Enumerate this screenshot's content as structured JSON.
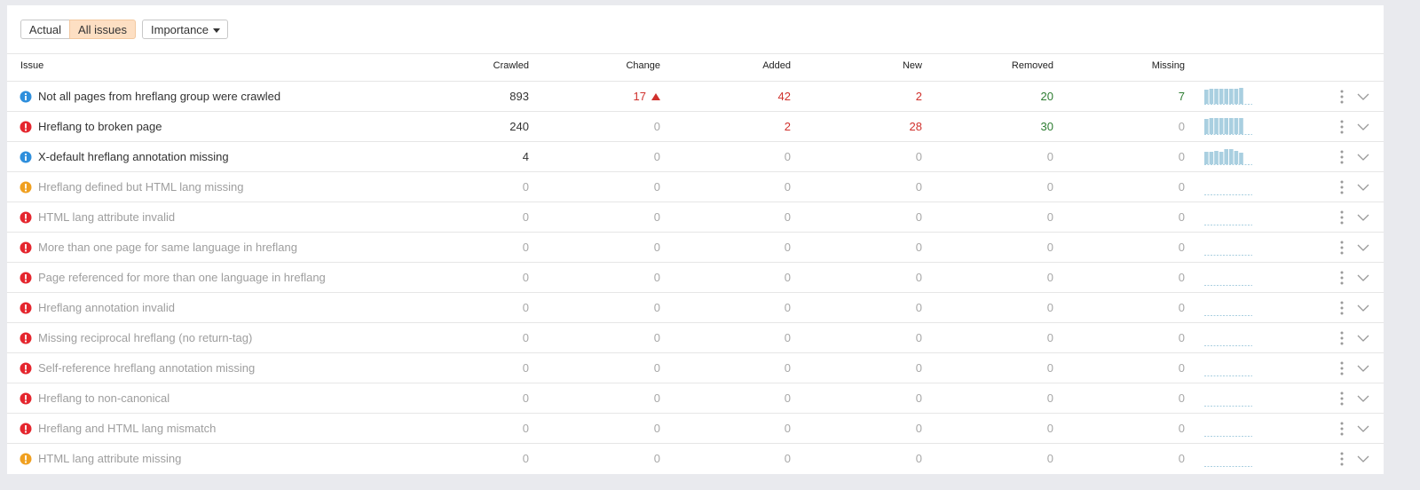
{
  "toolbar": {
    "tabs": [
      "Actual",
      "All issues"
    ],
    "active_tab": 1,
    "dropdown": "Importance"
  },
  "table": {
    "columns": [
      "Issue",
      "Crawled",
      "Change",
      "Added",
      "New",
      "Removed",
      "Missing"
    ],
    "rows": [
      {
        "level": "info",
        "issue": "Not all pages from hreflang group were crawled",
        "crawled": 893,
        "change": 17,
        "added": 42,
        "new": 2,
        "removed": 20,
        "missing": 7,
        "trend": [
          16,
          17,
          17,
          17,
          17,
          17,
          17,
          18
        ]
      },
      {
        "level": "error",
        "issue": "Hreflang to broken page",
        "crawled": 240,
        "change": 0,
        "added": 2,
        "new": 28,
        "removed": 30,
        "missing": 0,
        "trend": [
          17,
          18,
          18,
          18,
          18,
          18,
          18,
          18
        ]
      },
      {
        "level": "info",
        "issue": "X-default hreflang annotation missing",
        "crawled": 4,
        "change": 0,
        "added": 0,
        "new": 0,
        "removed": 0,
        "missing": 0,
        "trend": [
          14,
          14,
          15,
          14,
          17,
          17,
          15,
          13
        ]
      },
      {
        "level": "warning",
        "issue": "Hreflang defined but HTML lang missing",
        "crawled": 0,
        "change": 0,
        "added": 0,
        "new": 0,
        "removed": 0,
        "missing": 0,
        "trend": [
          0,
          0,
          0,
          0,
          0,
          0,
          0,
          0
        ]
      },
      {
        "level": "error",
        "issue": "HTML lang attribute invalid",
        "crawled": 0,
        "change": 0,
        "added": 0,
        "new": 0,
        "removed": 0,
        "missing": 0,
        "trend": [
          0,
          0,
          0,
          0,
          0,
          0,
          0,
          0
        ]
      },
      {
        "level": "error",
        "issue": "More than one page for same language in hreflang",
        "crawled": 0,
        "change": 0,
        "added": 0,
        "new": 0,
        "removed": 0,
        "missing": 0,
        "trend": [
          0,
          0,
          0,
          0,
          0,
          0,
          0,
          0
        ]
      },
      {
        "level": "error",
        "issue": "Page referenced for more than one language in hreflang",
        "crawled": 0,
        "change": 0,
        "added": 0,
        "new": 0,
        "removed": 0,
        "missing": 0,
        "trend": [
          0,
          0,
          0,
          0,
          0,
          0,
          0,
          0
        ]
      },
      {
        "level": "error",
        "issue": "Hreflang annotation invalid",
        "crawled": 0,
        "change": 0,
        "added": 0,
        "new": 0,
        "removed": 0,
        "missing": 0,
        "trend": [
          0,
          0,
          0,
          0,
          0,
          0,
          0,
          0
        ]
      },
      {
        "level": "error",
        "issue": "Missing reciprocal hreflang (no return-tag)",
        "crawled": 0,
        "change": 0,
        "added": 0,
        "new": 0,
        "removed": 0,
        "missing": 0,
        "trend": [
          0,
          0,
          0,
          0,
          0,
          0,
          0,
          0
        ]
      },
      {
        "level": "error",
        "issue": "Self-reference hreflang annotation missing",
        "crawled": 0,
        "change": 0,
        "added": 0,
        "new": 0,
        "removed": 0,
        "missing": 0,
        "trend": [
          0,
          0,
          0,
          0,
          0,
          0,
          0,
          0
        ]
      },
      {
        "level": "error",
        "issue": "Hreflang to non-canonical",
        "crawled": 0,
        "change": 0,
        "added": 0,
        "new": 0,
        "removed": 0,
        "missing": 0,
        "trend": [
          0,
          0,
          0,
          0,
          0,
          0,
          0,
          0
        ]
      },
      {
        "level": "error",
        "issue": "Hreflang and HTML lang mismatch",
        "crawled": 0,
        "change": 0,
        "added": 0,
        "new": 0,
        "removed": 0,
        "missing": 0,
        "trend": [
          0,
          0,
          0,
          0,
          0,
          0,
          0,
          0
        ]
      },
      {
        "level": "warning",
        "issue": "HTML lang attribute missing",
        "crawled": 0,
        "change": 0,
        "added": 0,
        "new": 0,
        "removed": 0,
        "missing": 0,
        "trend": [
          0,
          0,
          0,
          0,
          0,
          0,
          0,
          0
        ]
      }
    ]
  }
}
